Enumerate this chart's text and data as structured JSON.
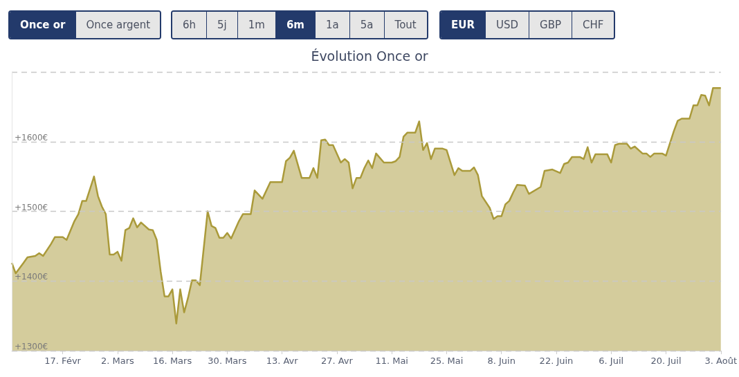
{
  "chart_data": {
    "type": "area",
    "title": "Évolution Once or",
    "annotations": [
      "Once or",
      "Once argent",
      "6h",
      "5j",
      "1m",
      "6m",
      "1a",
      "5a",
      "Tout",
      "EUR",
      "USD",
      "GBP",
      "CHF"
    ],
    "xlim": [
      "--02-04",
      "--08-03"
    ],
    "xticks": [
      {
        "value": "--02-17",
        "label": "17. Févr"
      },
      {
        "value": "--03-02",
        "label": "2. Mars"
      },
      {
        "value": "--03-16",
        "label": "16. Mars"
      },
      {
        "value": "--03-30",
        "label": "30. Mars"
      },
      {
        "value": "--04-13",
        "label": "13. Avr"
      },
      {
        "value": "--04-27",
        "label": "27. Avr"
      },
      {
        "value": "--05-11",
        "label": "11. Mai"
      },
      {
        "value": "--05-25",
        "label": "25. Mai"
      },
      {
        "value": "--06-08",
        "label": "8. Juin"
      },
      {
        "value": "--06-22",
        "label": "22. Juin"
      },
      {
        "value": "--07-06",
        "label": "6. Juil"
      },
      {
        "value": "--07-20",
        "label": "20. Juil"
      },
      {
        "value": "--08-03",
        "label": "3. Août"
      }
    ],
    "ylim": [
      1300,
      1700
    ],
    "yticks": [
      {
        "value": 1300,
        "label": "+1300€"
      },
      {
        "value": 1400,
        "label": "+1400€"
      },
      {
        "value": 1500,
        "label": "+1500€"
      },
      {
        "value": 1600,
        "label": "+1600€"
      },
      {
        "value": 1700,
        "label": null
      }
    ],
    "grid": "y",
    "marker": "none",
    "line_style": "solid",
    "series": [
      {
        "color": "#aa9a3a",
        "x": [
          "--02-04",
          "--02-05",
          "--02-07",
          "--02-08",
          "--02-10",
          "--02-11",
          "--02-12",
          "--02-14",
          "--02-15",
          "--02-17",
          "--02-18",
          "--02-20",
          "--02-21",
          "--02-22",
          "--02-23",
          "--02-25",
          "--02-26",
          "--02-27",
          "--02-28",
          "--02-29",
          "--03-01",
          "--03-02",
          "--03-03",
          "--03-04",
          "--03-05",
          "--03-06",
          "--03-07",
          "--03-08",
          "--03-10",
          "--03-11",
          "--03-12",
          "--03-13",
          "--03-14",
          "--03-15",
          "--03-16",
          "--03-17",
          "--03-18",
          "--03-19",
          "--03-20",
          "--03-21",
          "--03-22",
          "--03-23",
          "--03-25",
          "--03-26",
          "--03-27",
          "--03-28",
          "--03-29",
          "--03-30",
          "--03-31",
          "--04-02",
          "--04-03",
          "--04-05",
          "--04-06",
          "--04-08",
          "--04-10",
          "--04-13",
          "--04-14",
          "--04-15",
          "--04-16",
          "--04-18",
          "--04-20",
          "--04-21",
          "--04-22",
          "--04-23",
          "--04-24",
          "--04-25",
          "--04-26",
          "--04-28",
          "--04-29",
          "--04-30",
          "--05-01",
          "--05-02",
          "--05-03",
          "--05-04",
          "--05-05",
          "--05-06",
          "--05-07",
          "--05-09",
          "--05-11",
          "--05-12",
          "--05-13",
          "--05-14",
          "--05-15",
          "--05-17",
          "--05-18",
          "--05-19",
          "--05-20",
          "--05-21",
          "--05-22",
          "--05-24",
          "--05-25",
          "--05-27",
          "--05-28",
          "--05-29",
          "--05-31",
          "--06-01",
          "--06-02",
          "--06-03",
          "--06-05",
          "--06-06",
          "--06-07",
          "--06-08",
          "--06-09",
          "--06-10",
          "--06-11",
          "--06-12",
          "--06-14",
          "--06-15",
          "--06-18",
          "--06-19",
          "--06-21",
          "--06-23",
          "--06-24",
          "--06-25",
          "--06-26",
          "--06-28",
          "--06-29",
          "--06-30",
          "--07-01",
          "--07-02",
          "--07-05",
          "--07-06",
          "--07-07",
          "--07-08",
          "--07-10",
          "--07-11",
          "--07-12",
          "--07-14",
          "--07-15",
          "--07-16",
          "--07-17",
          "--07-19",
          "--07-20",
          "--07-22",
          "--07-23",
          "--07-24",
          "--07-26",
          "--07-27",
          "--07-28",
          "--07-29",
          "--07-30",
          "--07-31",
          "--08-01",
          "--08-03"
        ],
        "values": [
          1426,
          1411,
          1426,
          1434,
          1436,
          1440,
          1436,
          1453,
          1463,
          1463,
          1459,
          1486,
          1496,
          1515,
          1515,
          1550,
          1522,
          1507,
          1496,
          1438,
          1438,
          1442,
          1429,
          1473,
          1476,
          1490,
          1477,
          1484,
          1474,
          1473,
          1459,
          1414,
          1378,
          1378,
          1388,
          1339,
          1388,
          1355,
          1376,
          1401,
          1401,
          1394,
          1500,
          1479,
          1476,
          1462,
          1462,
          1469,
          1461,
          1486,
          1496,
          1496,
          1530,
          1518,
          1542,
          1542,
          1572,
          1577,
          1587,
          1548,
          1548,
          1562,
          1548,
          1602,
          1603,
          1595,
          1595,
          1570,
          1575,
          1570,
          1533,
          1548,
          1548,
          1562,
          1573,
          1562,
          1583,
          1570,
          1570,
          1572,
          1578,
          1607,
          1613,
          1613,
          1629,
          1588,
          1598,
          1575,
          1590,
          1590,
          1588,
          1552,
          1562,
          1558,
          1558,
          1563,
          1552,
          1522,
          1505,
          1489,
          1493,
          1493,
          1510,
          1515,
          1527,
          1538,
          1537,
          1525,
          1535,
          1558,
          1560,
          1555,
          1568,
          1570,
          1578,
          1578,
          1575,
          1592,
          1570,
          1582,
          1582,
          1570,
          1595,
          1597,
          1597,
          1590,
          1593,
          1583,
          1583,
          1578,
          1583,
          1583,
          1580,
          1615,
          1630,
          1633,
          1633,
          1652,
          1652,
          1667,
          1666,
          1652,
          1677,
          1677
        ]
      }
    ]
  }
}
